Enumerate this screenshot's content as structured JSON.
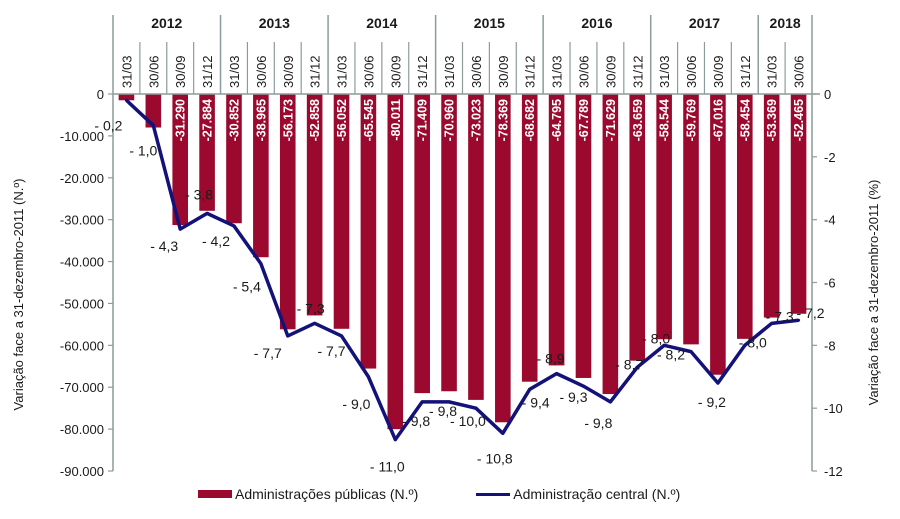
{
  "chart_data": {
    "type": "bar",
    "title": "",
    "ylabel": "Variação face a 31-dezembro-2011 (N.º)",
    "y2label": "Variação face a 31-dezembro-2011 (%)",
    "ylim": [
      -90000,
      0
    ],
    "y2lim": [
      -12,
      0
    ],
    "yticks": [
      "0",
      "-10.000",
      "-20.000",
      "-30.000",
      "-40.000",
      "-50.000",
      "-60.000",
      "-70.000",
      "-80.000",
      "-90.000"
    ],
    "y2ticks": [
      "0",
      "-2",
      "-4",
      "-6",
      "-8",
      "-10",
      "-12"
    ],
    "years": [
      {
        "label": "2012",
        "span": 4
      },
      {
        "label": "2013",
        "span": 4
      },
      {
        "label": "2014",
        "span": 4
      },
      {
        "label": "2015",
        "span": 4
      },
      {
        "label": "2016",
        "span": 4
      },
      {
        "label": "2017",
        "span": 4
      },
      {
        "label": "2018",
        "span": 2
      }
    ],
    "categories": [
      "31/03",
      "30/06",
      "30/09",
      "31/12",
      "31/03",
      "30/06",
      "30/09",
      "31/12",
      "31/03",
      "30/06",
      "30/09",
      "31/12",
      "31/03",
      "30/06",
      "30/09",
      "31/12",
      "31/03",
      "30/06",
      "30/09",
      "31/12",
      "31/03",
      "30/06",
      "30/09",
      "31/12",
      "31/03",
      "30/06"
    ],
    "series": [
      {
        "name": "Administrações públicas (N.º)",
        "type": "bar",
        "axis": "left",
        "color": "#9b0a2e",
        "values": [
          -1500,
          -8000,
          -31290,
          -27884,
          -30852,
          -38965,
          -56173,
          -52858,
          -56052,
          -65545,
          -80011,
          -71409,
          -70960,
          -73023,
          -78369,
          -68682,
          -64795,
          -67789,
          -71629,
          -63659,
          -58544,
          -59769,
          -67016,
          -58454,
          -53369,
          -52465
        ],
        "labels": [
          "",
          "",
          "-31.290",
          "-27.884",
          "-30.852",
          "-38.965",
          "-56.173",
          "-52.858",
          "-56.052",
          "-65.545",
          "-80.011",
          "-71.409",
          "-70.960",
          "-73.023",
          "-78.369",
          "-68.682",
          "-64.795",
          "-67.789",
          "-71.629",
          "-63.659",
          "-58.544",
          "-59.769",
          "-67.016",
          "-58.454",
          "-53.369",
          "-52.465"
        ]
      },
      {
        "name": "Administração central (N.º)",
        "type": "line",
        "axis": "right",
        "color": "#12127a",
        "values": [
          -0.2,
          -1.0,
          -4.3,
          -3.8,
          -4.2,
          -5.4,
          -7.7,
          -7.3,
          -7.7,
          -9.0,
          -11.0,
          -9.8,
          -9.8,
          -10.0,
          -10.8,
          -9.4,
          -8.9,
          -9.3,
          -9.8,
          -8.7,
          -8.0,
          -8.2,
          -9.2,
          -8.0,
          -7.3,
          -7.2
        ],
        "labels": [
          "- 0,2",
          "- 1,0",
          "- 4,3",
          "- 3,8",
          "- 4,2",
          "- 5,4",
          "- 7,7",
          "- 7,3",
          "- 7,7",
          "- 9,0",
          "- 11,0",
          "- 9,8",
          "- 9,8",
          "- 10,0",
          "- 10,8",
          "- 9,4",
          "- 8,9",
          "- 9,3",
          "- 9,8",
          "- 8,7",
          "- 8,0",
          "- 8,2",
          "- 9,2",
          "- 8,0",
          "- 7,3",
          "- 7,2"
        ]
      }
    ],
    "legend": "bottom",
    "grid": false
  },
  "legend": {
    "bar_label": "Administrações públicas (N.º)",
    "line_label": "Administração central (N.º)"
  }
}
